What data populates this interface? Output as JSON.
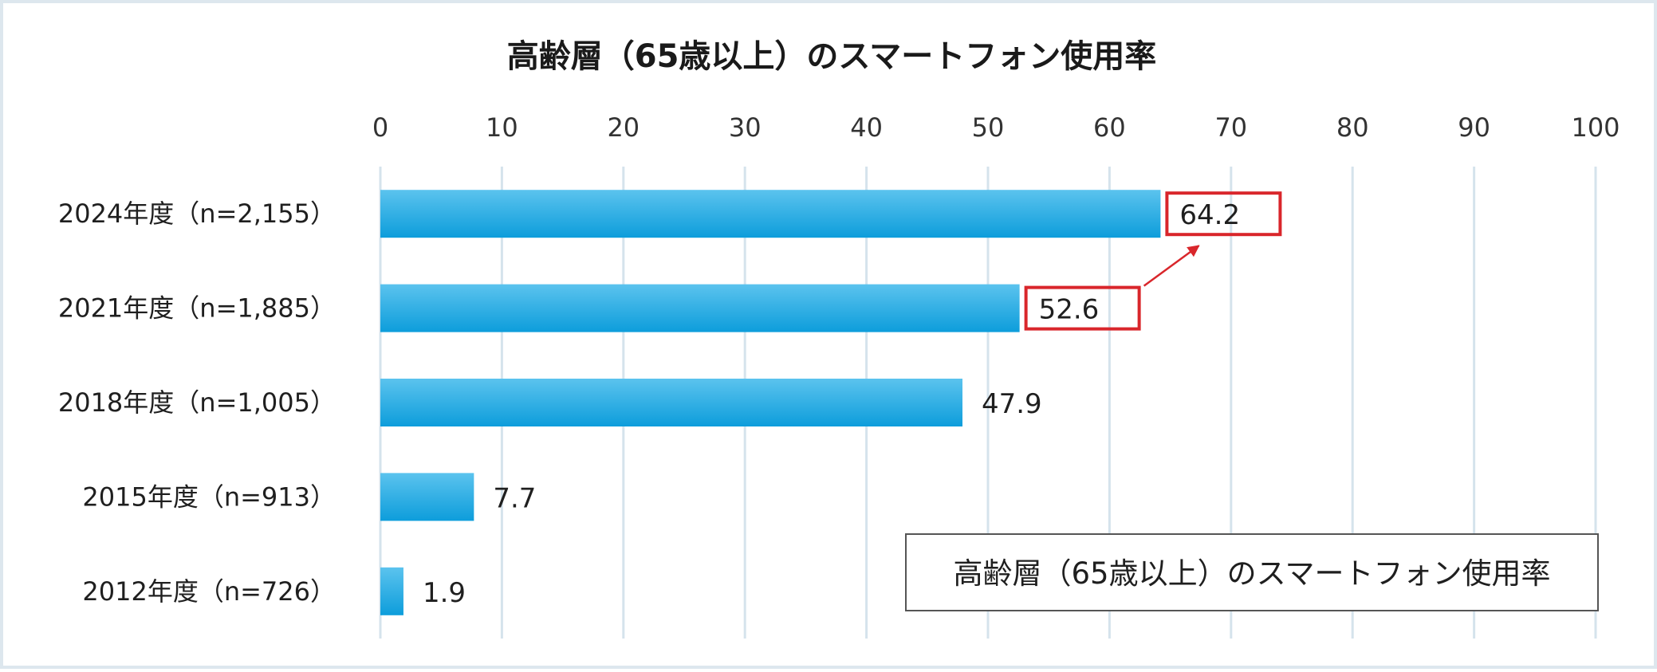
{
  "chart_data": {
    "type": "bar",
    "orientation": "horizontal",
    "title": "高齢層（65歳以上）のスマートフォン使用率",
    "categories": [
      "2024年度（n=2,155）",
      "2021年度（n=1,885）",
      "2018年度（n=1,005）",
      "2015年度（n=913）",
      "2012年度（n=726）"
    ],
    "values": [
      64.2,
      52.6,
      47.9,
      7.7,
      1.9
    ],
    "value_labels": [
      "64.2",
      "52.6",
      "47.9",
      "7.7",
      "1.9"
    ],
    "xlim": [
      0,
      100
    ],
    "xticks": [
      "0",
      "10",
      "20",
      "30",
      "40",
      "50",
      "60",
      "70",
      "80",
      "90",
      "100"
    ],
    "x_axis_position": "top",
    "grid": true,
    "highlighted": [
      "64.2",
      "52.6"
    ],
    "annotation": "arrow from 52.6 to 64.2",
    "legend_text": "高齢層（65歳以上）のスマートフォン使用率",
    "legend_position": "bottom-right",
    "colors": {
      "bar_top": "#5bc3ee",
      "bar_bottom": "#0d9ddb",
      "grid": "#d5e3ec",
      "highlight": "#d9262b",
      "frame": "#dde7ee"
    }
  }
}
